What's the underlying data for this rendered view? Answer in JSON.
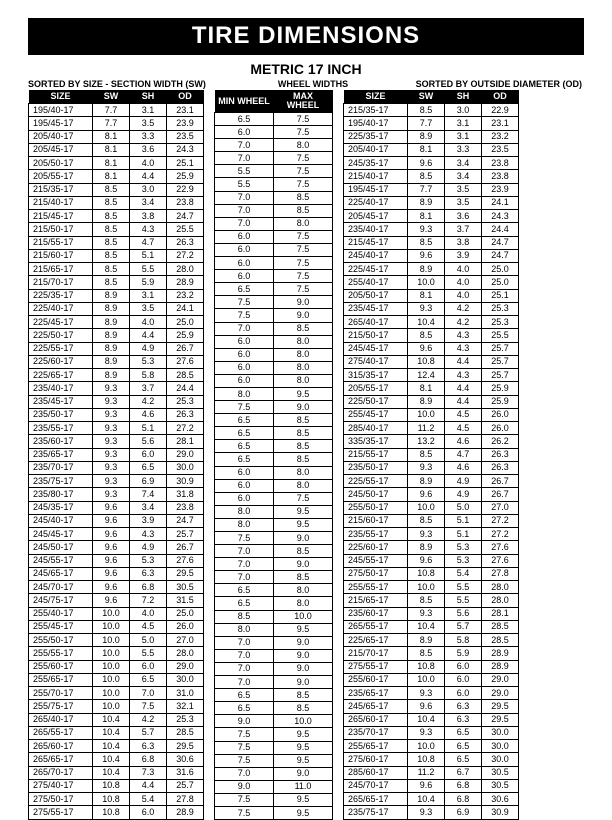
{
  "title": "TIRE DIMENSIONS",
  "subtitle": "METRIC 17 INCH",
  "labels": {
    "left": "SORTED BY SIZE - SECTION WIDTH  (SW)",
    "center": "WHEEL WIDTHS",
    "right": "SORTED BY OUTSIDE DIAMETER  (OD)"
  },
  "headers1": [
    "SIZE",
    "SW",
    "SH",
    "OD"
  ],
  "headers2": [
    "MIN  WHEEL",
    "MAX WHEEL"
  ],
  "headers3": [
    "SIZE",
    "SW",
    "SH",
    "OD"
  ],
  "table1": [
    [
      "195/40-17",
      "7.7",
      "3.1",
      "23.1"
    ],
    [
      "195/45-17",
      "7.7",
      "3.5",
      "23.9"
    ],
    [
      "205/40-17",
      "8.1",
      "3.3",
      "23.5"
    ],
    [
      "205/45-17",
      "8.1",
      "3.6",
      "24.3"
    ],
    [
      "205/50-17",
      "8.1",
      "4.0",
      "25.1"
    ],
    [
      "205/55-17",
      "8.1",
      "4.4",
      "25.9"
    ],
    [
      "215/35-17",
      "8.5",
      "3.0",
      "22.9"
    ],
    [
      "215/40-17",
      "8.5",
      "3.4",
      "23.8"
    ],
    [
      "215/45-17",
      "8.5",
      "3.8",
      "24.7"
    ],
    [
      "215/50-17",
      "8.5",
      "4.3",
      "25.5"
    ],
    [
      "215/55-17",
      "8.5",
      "4.7",
      "26.3"
    ],
    [
      "215/60-17",
      "8.5",
      "5.1",
      "27.2"
    ],
    [
      "215/65-17",
      "8.5",
      "5.5",
      "28.0"
    ],
    [
      "215/70-17",
      "8.5",
      "5.9",
      "28.9"
    ],
    [
      "225/35-17",
      "8.9",
      "3.1",
      "23.2"
    ],
    [
      "225/40-17",
      "8.9",
      "3.5",
      "24.1"
    ],
    [
      "225/45-17",
      "8.9",
      "4.0",
      "25.0"
    ],
    [
      "225/50-17",
      "8.9",
      "4.4",
      "25.9"
    ],
    [
      "225/55-17",
      "8.9",
      "4.9",
      "26.7"
    ],
    [
      "225/60-17",
      "8.9",
      "5.3",
      "27.6"
    ],
    [
      "225/65-17",
      "8.9",
      "5.8",
      "28.5"
    ],
    [
      "235/40-17",
      "9.3",
      "3.7",
      "24.4"
    ],
    [
      "235/45-17",
      "9.3",
      "4.2",
      "25.3"
    ],
    [
      "235/50-17",
      "9.3",
      "4.6",
      "26.3"
    ],
    [
      "235/55-17",
      "9.3",
      "5.1",
      "27.2"
    ],
    [
      "235/60-17",
      "9.3",
      "5.6",
      "28.1"
    ],
    [
      "235/65-17",
      "9.3",
      "6.0",
      "29.0"
    ],
    [
      "235/70-17",
      "9.3",
      "6.5",
      "30.0"
    ],
    [
      "235/75-17",
      "9.3",
      "6.9",
      "30.9"
    ],
    [
      "235/80-17",
      "9.3",
      "7.4",
      "31.8"
    ],
    [
      "245/35-17",
      "9.6",
      "3.4",
      "23.8"
    ],
    [
      "245/40-17",
      "9.6",
      "3.9",
      "24.7"
    ],
    [
      "245/45-17",
      "9.6",
      "4.3",
      "25.7"
    ],
    [
      "245/50-17",
      "9.6",
      "4.9",
      "26.7"
    ],
    [
      "245/55-17",
      "9.6",
      "5.3",
      "27.6"
    ],
    [
      "245/65-17",
      "9.6",
      "6.3",
      "29.5"
    ],
    [
      "245/70-17",
      "9.6",
      "6.8",
      "30.5"
    ],
    [
      "245/75-17",
      "9.6",
      "7.2",
      "31.5"
    ],
    [
      "255/40-17",
      "10.0",
      "4.0",
      "25.0"
    ],
    [
      "255/45-17",
      "10.0",
      "4.5",
      "26.0"
    ],
    [
      "255/50-17",
      "10.0",
      "5.0",
      "27.0"
    ],
    [
      "255/55-17",
      "10.0",
      "5.5",
      "28.0"
    ],
    [
      "255/60-17",
      "10.0",
      "6.0",
      "29.0"
    ],
    [
      "255/65-17",
      "10.0",
      "6.5",
      "30.0"
    ],
    [
      "255/70-17",
      "10.0",
      "7.0",
      "31.0"
    ],
    [
      "255/75-17",
      "10.0",
      "7.5",
      "32.1"
    ],
    [
      "265/40-17",
      "10.4",
      "4.2",
      "25.3"
    ],
    [
      "265/55-17",
      "10.4",
      "5.7",
      "28.5"
    ],
    [
      "265/60-17",
      "10.4",
      "6.3",
      "29.5"
    ],
    [
      "265/65-17",
      "10.4",
      "6.8",
      "30.6"
    ],
    [
      "265/70-17",
      "10.4",
      "7.3",
      "31.6"
    ],
    [
      "275/40-17",
      "10.8",
      "4.4",
      "25.7"
    ],
    [
      "275/50-17",
      "10.8",
      "5.4",
      "27.8"
    ],
    [
      "275/55-17",
      "10.8",
      "6.0",
      "28.9"
    ]
  ],
  "table2": [
    [
      "6.5",
      "7.5"
    ],
    [
      "6.0",
      "7.5"
    ],
    [
      "7.0",
      "8.0"
    ],
    [
      "7.0",
      "7.5"
    ],
    [
      "5.5",
      "7.5"
    ],
    [
      "5.5",
      "7.5"
    ],
    [
      "7.0",
      "8.5"
    ],
    [
      "7.0",
      "8.5"
    ],
    [
      "7.0",
      "8.0"
    ],
    [
      "6.0",
      "7.5"
    ],
    [
      "6.0",
      "7.5"
    ],
    [
      "6.0",
      "7.5"
    ],
    [
      "6.0",
      "7.5"
    ],
    [
      "6.5",
      "7.5"
    ],
    [
      "7.5",
      "9.0"
    ],
    [
      "7.5",
      "9.0"
    ],
    [
      "7.0",
      "8.5"
    ],
    [
      "6.0",
      "8.0"
    ],
    [
      "6.0",
      "8.0"
    ],
    [
      "6.0",
      "8.0"
    ],
    [
      "6.0",
      "8.0"
    ],
    [
      "8.0",
      "9.5"
    ],
    [
      "7.5",
      "9.0"
    ],
    [
      "6.5",
      "8.5"
    ],
    [
      "6.5",
      "8.5"
    ],
    [
      "6.5",
      "8.5"
    ],
    [
      "6.5",
      "8.5"
    ],
    [
      "6.0",
      "8.0"
    ],
    [
      "6.0",
      "8.0"
    ],
    [
      "6.0",
      "7.5"
    ],
    [
      "8.0",
      "9.5"
    ],
    [
      "8.0",
      "9.5"
    ],
    [
      "7.5",
      "9.0"
    ],
    [
      "7.0",
      "8.5"
    ],
    [
      "7.0",
      "9.0"
    ],
    [
      "7.0",
      "8.5"
    ],
    [
      "6.5",
      "8.0"
    ],
    [
      "6.5",
      "8.0"
    ],
    [
      "8.5",
      "10.0"
    ],
    [
      "8.0",
      "9.5"
    ],
    [
      "7.0",
      "9.0"
    ],
    [
      "7.0",
      "9.0"
    ],
    [
      "7.0",
      "9.0"
    ],
    [
      "7.0",
      "9.0"
    ],
    [
      "6.5",
      "8.5"
    ],
    [
      "6.5",
      "8.5"
    ],
    [
      "9.0",
      "10.0"
    ],
    [
      "7.5",
      "9.5"
    ],
    [
      "7.5",
      "9.5"
    ],
    [
      "7.5",
      "9.5"
    ],
    [
      "7.0",
      "9.0"
    ],
    [
      "9.0",
      "11.0"
    ],
    [
      "7.5",
      "9.5"
    ],
    [
      "7.5",
      "9.5"
    ]
  ],
  "table3": [
    [
      "215/35-17",
      "8.5",
      "3.0",
      "22.9"
    ],
    [
      "195/40-17",
      "7.7",
      "3.1",
      "23.1"
    ],
    [
      "225/35-17",
      "8.9",
      "3.1",
      "23.2"
    ],
    [
      "205/40-17",
      "8.1",
      "3.3",
      "23.5"
    ],
    [
      "245/35-17",
      "9.6",
      "3.4",
      "23.8"
    ],
    [
      "215/40-17",
      "8.5",
      "3.4",
      "23.8"
    ],
    [
      "195/45-17",
      "7.7",
      "3.5",
      "23.9"
    ],
    [
      "225/40-17",
      "8.9",
      "3.5",
      "24.1"
    ],
    [
      "205/45-17",
      "8.1",
      "3.6",
      "24.3"
    ],
    [
      "235/40-17",
      "9.3",
      "3.7",
      "24.4"
    ],
    [
      "215/45-17",
      "8.5",
      "3.8",
      "24.7"
    ],
    [
      "245/40-17",
      "9.6",
      "3.9",
      "24.7"
    ],
    [
      "225/45-17",
      "8.9",
      "4.0",
      "25.0"
    ],
    [
      "255/40-17",
      "10.0",
      "4.0",
      "25.0"
    ],
    [
      "205/50-17",
      "8.1",
      "4.0",
      "25.1"
    ],
    [
      "235/45-17",
      "9.3",
      "4.2",
      "25.3"
    ],
    [
      "265/40-17",
      "10.4",
      "4.2",
      "25.3"
    ],
    [
      "215/50-17",
      "8.5",
      "4.3",
      "25.5"
    ],
    [
      "245/45-17",
      "9.6",
      "4.3",
      "25.7"
    ],
    [
      "275/40-17",
      "10.8",
      "4.4",
      "25.7"
    ],
    [
      "315/35-17",
      "12.4",
      "4.3",
      "25.7"
    ],
    [
      "205/55-17",
      "8.1",
      "4.4",
      "25.9"
    ],
    [
      "225/50-17",
      "8.9",
      "4.4",
      "25.9"
    ],
    [
      "255/45-17",
      "10.0",
      "4.5",
      "26.0"
    ],
    [
      "285/40-17",
      "11.2",
      "4.5",
      "26.0"
    ],
    [
      "335/35-17",
      "13.2",
      "4.6",
      "26.2"
    ],
    [
      "215/55-17",
      "8.5",
      "4.7",
      "26.3"
    ],
    [
      "235/50-17",
      "9.3",
      "4.6",
      "26.3"
    ],
    [
      "225/55-17",
      "8.9",
      "4.9",
      "26.7"
    ],
    [
      "245/50-17",
      "9.6",
      "4.9",
      "26.7"
    ],
    [
      "255/50-17",
      "10.0",
      "5.0",
      "27.0"
    ],
    [
      "215/60-17",
      "8.5",
      "5.1",
      "27.2"
    ],
    [
      "235/55-17",
      "9.3",
      "5.1",
      "27.2"
    ],
    [
      "225/60-17",
      "8.9",
      "5.3",
      "27.6"
    ],
    [
      "245/55-17",
      "9.6",
      "5.3",
      "27.6"
    ],
    [
      "275/50-17",
      "10.8",
      "5.4",
      "27.8"
    ],
    [
      "255/55-17",
      "10.0",
      "5.5",
      "28.0"
    ],
    [
      "215/65-17",
      "8.5",
      "5.5",
      "28.0"
    ],
    [
      "235/60-17",
      "9.3",
      "5.6",
      "28.1"
    ],
    [
      "265/55-17",
      "10.4",
      "5.7",
      "28.5"
    ],
    [
      "225/65-17",
      "8.9",
      "5.8",
      "28.5"
    ],
    [
      "215/70-17",
      "8.5",
      "5.9",
      "28.9"
    ],
    [
      "275/55-17",
      "10.8",
      "6.0",
      "28.9"
    ],
    [
      "255/60-17",
      "10.0",
      "6.0",
      "29.0"
    ],
    [
      "235/65-17",
      "9.3",
      "6.0",
      "29.0"
    ],
    [
      "245/65-17",
      "9.6",
      "6.3",
      "29.5"
    ],
    [
      "265/60-17",
      "10.4",
      "6.3",
      "29.5"
    ],
    [
      "235/70-17",
      "9.3",
      "6.5",
      "30.0"
    ],
    [
      "255/65-17",
      "10.0",
      "6.5",
      "30.0"
    ],
    [
      "275/60-17",
      "10.8",
      "6.5",
      "30.0"
    ],
    [
      "285/60-17",
      "11.2",
      "6.7",
      "30.5"
    ],
    [
      "245/70-17",
      "9.6",
      "6.8",
      "30.5"
    ],
    [
      "265/65-17",
      "10.4",
      "6.8",
      "30.6"
    ],
    [
      "235/75-17",
      "9.3",
      "6.9",
      "30.9"
    ]
  ]
}
